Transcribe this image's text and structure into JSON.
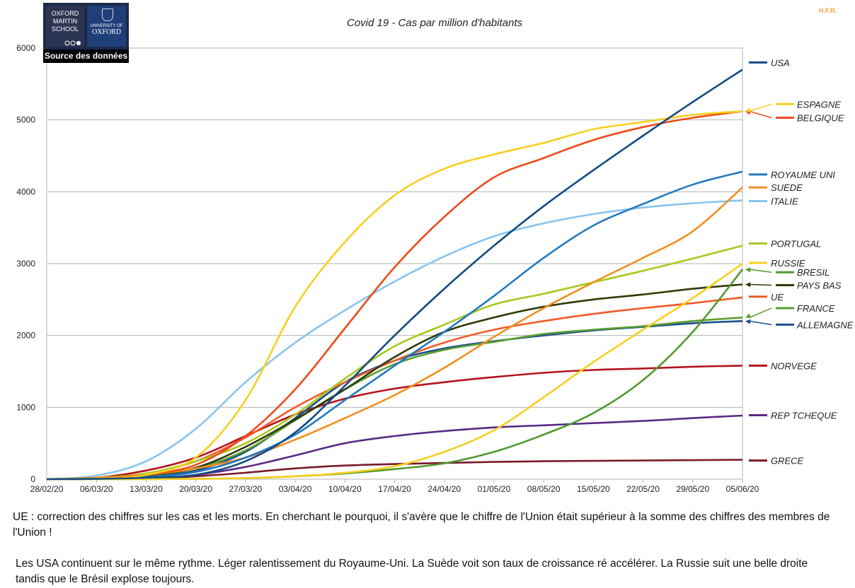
{
  "logo": {
    "left_text": "OXFORD MARTIN SCHOOL",
    "right_small": "UNIVERSITY OF",
    "right_big": "OXFORD",
    "caption": "Source des données"
  },
  "watermark": "H.F.R.",
  "chart_data": {
    "type": "line",
    "title": "Covid 19 -  Cas par million d'habitants",
    "xlabel": "",
    "ylabel": "",
    "ylim": [
      0,
      6000
    ],
    "xlim": [
      0,
      98
    ],
    "yticks": [
      0,
      1000,
      2000,
      3000,
      4000,
      5000,
      6000
    ],
    "xticks": [
      {
        "t": 0,
        "label": "28/02/20"
      },
      {
        "t": 7,
        "label": "06/03/20"
      },
      {
        "t": 14,
        "label": "13/03/20"
      },
      {
        "t": 21,
        "label": "20/03/20"
      },
      {
        "t": 28,
        "label": "27/03/20"
      },
      {
        "t": 35,
        "label": "03/04/20"
      },
      {
        "t": 42,
        "label": "10/04/20"
      },
      {
        "t": 49,
        "label": "17/04/20"
      },
      {
        "t": 56,
        "label": "24/04/20"
      },
      {
        "t": 63,
        "label": "01/05/20"
      },
      {
        "t": 70,
        "label": "08/05/20"
      },
      {
        "t": 77,
        "label": "15/05/20"
      },
      {
        "t": 84,
        "label": "22/05/20"
      },
      {
        "t": 91,
        "label": "29/05/20"
      },
      {
        "t": 98,
        "label": "05/06/20"
      }
    ],
    "grid": true,
    "series": [
      {
        "name": "GRECE",
        "color": "#7a1a2a",
        "label_value": 260,
        "points": [
          [
            0,
            0
          ],
          [
            14,
            10
          ],
          [
            21,
            40
          ],
          [
            28,
            90
          ],
          [
            35,
            150
          ],
          [
            42,
            190
          ],
          [
            49,
            210
          ],
          [
            56,
            225
          ],
          [
            63,
            240
          ],
          [
            70,
            250
          ],
          [
            77,
            255
          ],
          [
            84,
            260
          ],
          [
            91,
            265
          ],
          [
            98,
            270
          ]
        ]
      },
      {
        "name": "REP TCHEQUE",
        "color": "#5a2a86",
        "label_value": 890,
        "points": [
          [
            0,
            0
          ],
          [
            14,
            10
          ],
          [
            21,
            60
          ],
          [
            28,
            170
          ],
          [
            35,
            330
          ],
          [
            42,
            500
          ],
          [
            49,
            600
          ],
          [
            56,
            670
          ],
          [
            63,
            720
          ],
          [
            70,
            750
          ],
          [
            77,
            780
          ],
          [
            84,
            810
          ],
          [
            91,
            850
          ],
          [
            98,
            885
          ]
        ]
      },
      {
        "name": "NORVEGE",
        "color": "#b5121b",
        "label_value": 1580,
        "points": [
          [
            0,
            0
          ],
          [
            7,
            20
          ],
          [
            14,
            120
          ],
          [
            21,
            300
          ],
          [
            28,
            600
          ],
          [
            35,
            900
          ],
          [
            42,
            1120
          ],
          [
            49,
            1260
          ],
          [
            56,
            1350
          ],
          [
            63,
            1420
          ],
          [
            70,
            1480
          ],
          [
            77,
            1520
          ],
          [
            84,
            1540
          ],
          [
            91,
            1565
          ],
          [
            98,
            1580
          ]
        ]
      },
      {
        "name": "ALLEMAGNE",
        "color": "#1a4f8a",
        "arrow": true,
        "label_value": 2150,
        "points": [
          [
            0,
            0
          ],
          [
            7,
            10
          ],
          [
            14,
            40
          ],
          [
            21,
            120
          ],
          [
            28,
            380
          ],
          [
            35,
            850
          ],
          [
            42,
            1350
          ],
          [
            49,
            1650
          ],
          [
            56,
            1820
          ],
          [
            63,
            1920
          ],
          [
            70,
            2000
          ],
          [
            77,
            2070
          ],
          [
            84,
            2120
          ],
          [
            91,
            2170
          ],
          [
            98,
            2200
          ]
        ]
      },
      {
        "name": "FRANCE",
        "color": "#5a9e32",
        "arrow": true,
        "label_value": 2380,
        "points": [
          [
            0,
            0
          ],
          [
            7,
            10
          ],
          [
            14,
            50
          ],
          [
            21,
            150
          ],
          [
            28,
            400
          ],
          [
            35,
            820
          ],
          [
            42,
            1250
          ],
          [
            49,
            1600
          ],
          [
            56,
            1800
          ],
          [
            63,
            1910
          ],
          [
            70,
            2020
          ],
          [
            77,
            2080
          ],
          [
            84,
            2130
          ],
          [
            91,
            2200
          ],
          [
            98,
            2250
          ]
        ]
      },
      {
        "name": "UE",
        "color": "#f05a28",
        "label_value": 2540,
        "points": [
          [
            0,
            0
          ],
          [
            7,
            20
          ],
          [
            14,
            80
          ],
          [
            21,
            250
          ],
          [
            28,
            580
          ],
          [
            35,
            1000
          ],
          [
            42,
            1350
          ],
          [
            49,
            1650
          ],
          [
            56,
            1900
          ],
          [
            63,
            2080
          ],
          [
            70,
            2200
          ],
          [
            77,
            2300
          ],
          [
            84,
            2380
          ],
          [
            91,
            2450
          ],
          [
            98,
            2530
          ]
        ]
      },
      {
        "name": "PAYS BAS",
        "color": "#2f3a06",
        "arrow": true,
        "label_value": 2700,
        "points": [
          [
            0,
            0
          ],
          [
            7,
            10
          ],
          [
            14,
            50
          ],
          [
            21,
            160
          ],
          [
            28,
            450
          ],
          [
            35,
            830
          ],
          [
            42,
            1250
          ],
          [
            49,
            1700
          ],
          [
            56,
            2050
          ],
          [
            63,
            2250
          ],
          [
            70,
            2400
          ],
          [
            77,
            2500
          ],
          [
            84,
            2570
          ],
          [
            91,
            2650
          ],
          [
            98,
            2710
          ]
        ]
      },
      {
        "name": "BRESIL",
        "color": "#4f9a2d",
        "arrow": true,
        "label_value": 2880,
        "points": [
          [
            0,
            0
          ],
          [
            14,
            0
          ],
          [
            21,
            5
          ],
          [
            28,
            15
          ],
          [
            35,
            40
          ],
          [
            42,
            80
          ],
          [
            49,
            140
          ],
          [
            56,
            220
          ],
          [
            63,
            380
          ],
          [
            70,
            620
          ],
          [
            77,
            920
          ],
          [
            84,
            1380
          ],
          [
            91,
            2050
          ],
          [
            98,
            2920
          ]
        ]
      },
      {
        "name": "RUSSIE",
        "color": "#f8cf1e",
        "label_value": 3010,
        "points": [
          [
            0,
            0
          ],
          [
            14,
            0
          ],
          [
            21,
            5
          ],
          [
            28,
            15
          ],
          [
            35,
            40
          ],
          [
            42,
            90
          ],
          [
            49,
            180
          ],
          [
            56,
            380
          ],
          [
            63,
            680
          ],
          [
            70,
            1140
          ],
          [
            77,
            1630
          ],
          [
            84,
            2080
          ],
          [
            91,
            2520
          ],
          [
            98,
            3000
          ]
        ]
      },
      {
        "name": "PORTUGAL",
        "color": "#a8c81e",
        "label_value": 3280,
        "points": [
          [
            0,
            0
          ],
          [
            7,
            20
          ],
          [
            14,
            80
          ],
          [
            21,
            250
          ],
          [
            28,
            500
          ],
          [
            35,
            900
          ],
          [
            42,
            1400
          ],
          [
            49,
            1850
          ],
          [
            56,
            2150
          ],
          [
            63,
            2430
          ],
          [
            70,
            2580
          ],
          [
            77,
            2740
          ],
          [
            84,
            2900
          ],
          [
            91,
            3070
          ],
          [
            98,
            3250
          ]
        ]
      },
      {
        "name": "ITALIE",
        "color": "#87c4ee",
        "label_value": 3870,
        "points": [
          [
            0,
            0
          ],
          [
            7,
            50
          ],
          [
            14,
            250
          ],
          [
            21,
            700
          ],
          [
            28,
            1350
          ],
          [
            35,
            1900
          ],
          [
            42,
            2350
          ],
          [
            49,
            2750
          ],
          [
            56,
            3100
          ],
          [
            63,
            3380
          ],
          [
            70,
            3560
          ],
          [
            77,
            3690
          ],
          [
            84,
            3780
          ],
          [
            91,
            3840
          ],
          [
            98,
            3880
          ]
        ]
      },
      {
        "name": "SUEDE",
        "color": "#f28e1e",
        "label_value": 4060,
        "points": [
          [
            0,
            0
          ],
          [
            7,
            20
          ],
          [
            14,
            60
          ],
          [
            21,
            150
          ],
          [
            28,
            300
          ],
          [
            35,
            550
          ],
          [
            42,
            850
          ],
          [
            49,
            1170
          ],
          [
            56,
            1550
          ],
          [
            63,
            1980
          ],
          [
            70,
            2380
          ],
          [
            77,
            2740
          ],
          [
            84,
            3080
          ],
          [
            91,
            3450
          ],
          [
            98,
            4060
          ]
        ]
      },
      {
        "name": "ROYAUME UNI",
        "color": "#2278c0",
        "label_value": 4240,
        "points": [
          [
            0,
            0
          ],
          [
            7,
            5
          ],
          [
            14,
            30
          ],
          [
            21,
            100
          ],
          [
            28,
            300
          ],
          [
            35,
            620
          ],
          [
            42,
            1100
          ],
          [
            49,
            1580
          ],
          [
            56,
            2050
          ],
          [
            63,
            2550
          ],
          [
            70,
            3080
          ],
          [
            77,
            3530
          ],
          [
            84,
            3830
          ],
          [
            91,
            4100
          ],
          [
            98,
            4280
          ]
        ]
      },
      {
        "name": "BELGIQUE",
        "color": "#ee4a1a",
        "arrow": true,
        "label_value": 5030,
        "points": [
          [
            0,
            0
          ],
          [
            7,
            10
          ],
          [
            14,
            60
          ],
          [
            21,
            200
          ],
          [
            28,
            600
          ],
          [
            35,
            1250
          ],
          [
            42,
            2100
          ],
          [
            49,
            2950
          ],
          [
            56,
            3650
          ],
          [
            63,
            4200
          ],
          [
            70,
            4470
          ],
          [
            77,
            4720
          ],
          [
            84,
            4900
          ],
          [
            91,
            5030
          ],
          [
            98,
            5120
          ]
        ]
      },
      {
        "name": "ESPAGNE",
        "color": "#f8cf1e",
        "arrow": true,
        "label_value": 5220,
        "points": [
          [
            0,
            0
          ],
          [
            7,
            10
          ],
          [
            14,
            60
          ],
          [
            21,
            300
          ],
          [
            28,
            1100
          ],
          [
            35,
            2400
          ],
          [
            42,
            3300
          ],
          [
            49,
            3950
          ],
          [
            56,
            4320
          ],
          [
            63,
            4520
          ],
          [
            70,
            4680
          ],
          [
            77,
            4870
          ],
          [
            84,
            4970
          ],
          [
            91,
            5070
          ],
          [
            98,
            5120
          ]
        ]
      },
      {
        "name": "USA",
        "color": "#124c82",
        "label_value": 5800,
        "points": [
          [
            0,
            0
          ],
          [
            7,
            5
          ],
          [
            14,
            20
          ],
          [
            21,
            60
          ],
          [
            28,
            250
          ],
          [
            35,
            650
          ],
          [
            42,
            1300
          ],
          [
            49,
            2000
          ],
          [
            56,
            2650
          ],
          [
            63,
            3250
          ],
          [
            70,
            3800
          ],
          [
            77,
            4300
          ],
          [
            84,
            4780
          ],
          [
            91,
            5250
          ],
          [
            98,
            5700
          ]
        ]
      }
    ]
  },
  "notes": [
    "UE : correction des chiffres sur les cas et les morts. En cherchant le pourquoi, il s'avère que le chiffre de l'Union était supérieur à la somme des chiffres des membres de l'Union !",
    "Les USA continuent sur le même rythme. Léger ralentissement du Royaume-Uni. La Suède voit son taux de croissance ré accélérer. La Russie suit une belle droite tandis que le Brésil explose toujours."
  ]
}
